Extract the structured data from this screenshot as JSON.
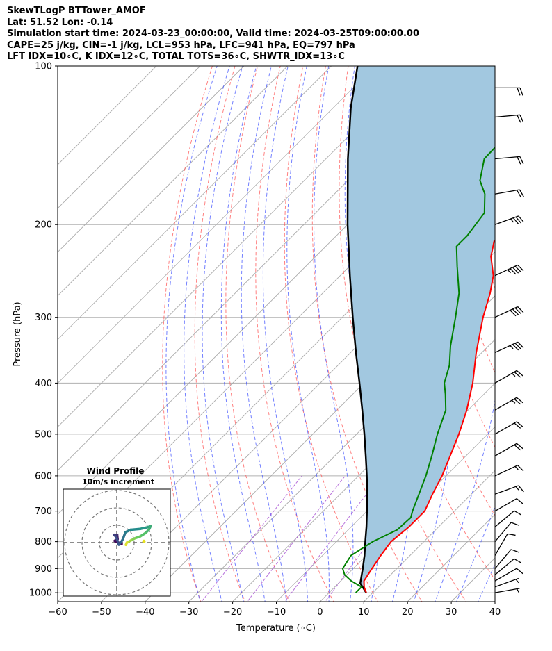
{
  "header": {
    "line1": "SkewTLogP BTTower_AMOF",
    "line2": "Lat: 51.52   Lon: -0.14",
    "line3": "Simulation start time: 2024-03-23_00:00:00, Valid time: 2024-03-25T09:00:00.00",
    "line4": "CAPE=25 j/kg, CIN=-1 j/kg, LCL=953 hPa, LFC=941 hPa, EQ=797 hPa",
    "line5": "LFT IDX=10∘C, K IDX=12∘C, TOTAL TOTS=36∘C, SHWTR_IDX=13∘C"
  },
  "chart_data": {
    "type": "line",
    "xlabel": "Temperature (∘C)",
    "ylabel": "Pressure (hPa)",
    "xlim": [
      -60,
      40
    ],
    "ylim": [
      1040,
      100
    ],
    "y_scale": "log",
    "skew": true,
    "x_ticks": [
      "−60",
      "−50",
      "−40",
      "−30",
      "−20",
      "−10",
      "0",
      "10",
      "20",
      "30",
      "40"
    ],
    "x_tick_values": [
      -60,
      -50,
      -40,
      -30,
      -20,
      -10,
      0,
      10,
      20,
      30,
      40
    ],
    "y_ticks": [
      "100",
      "200",
      "300",
      "400",
      "500",
      "600",
      "700",
      "800",
      "900",
      "1000"
    ],
    "y_tick_values": [
      100,
      200,
      300,
      400,
      500,
      600,
      700,
      800,
      900,
      1000
    ],
    "grid": true,
    "colors": {
      "temperature": "#ff0000",
      "dewpoint": "#008000",
      "parcel": "#000000",
      "cape_fill": "#a2c8e0",
      "dry_adiabats": "#ff5555",
      "moist_adiabats": "#4455ff",
      "mixing_ratio": "#9933cc",
      "isotherms": "#aaaaaa"
    },
    "temperature_profile": [
      {
        "p": 1000,
        "t": 8.5
      },
      {
        "p": 975,
        "t": 6.7
      },
      {
        "p": 950,
        "t": 5.3
      },
      {
        "p": 900,
        "t": 4.3
      },
      {
        "p": 850,
        "t": 3.3
      },
      {
        "p": 800,
        "t": 2.5
      },
      {
        "p": 750,
        "t": 3.2
      },
      {
        "p": 700,
        "t": 3.2
      },
      {
        "p": 650,
        "t": 1.1
      },
      {
        "p": 600,
        "t": -0.9
      },
      {
        "p": 550,
        "t": -3.6
      },
      {
        "p": 500,
        "t": -6.6
      },
      {
        "p": 450,
        "t": -10.3
      },
      {
        "p": 400,
        "t": -15.1
      },
      {
        "p": 350,
        "t": -21.3
      },
      {
        "p": 300,
        "t": -27.8
      },
      {
        "p": 270,
        "t": -31.7
      },
      {
        "p": 250,
        "t": -35.0
      },
      {
        "p": 230,
        "t": -39.9
      },
      {
        "p": 215,
        "t": -42.7
      },
      {
        "p": 200,
        "t": -41.1
      },
      {
        "p": 185,
        "t": -36.7
      },
      {
        "p": 170,
        "t": -37.9
      },
      {
        "p": 150,
        "t": -41.0
      },
      {
        "p": 140,
        "t": -43.6
      },
      {
        "p": 130,
        "t": -46.2
      },
      {
        "p": 120,
        "t": -50.4
      },
      {
        "p": 110,
        "t": -54.4
      },
      {
        "p": 104,
        "t": -56.9
      },
      {
        "p": 100,
        "t": -57.3
      }
    ],
    "dewpoint_profile": [
      {
        "p": 1000,
        "t": 6.1
      },
      {
        "p": 975,
        "t": 6.1
      },
      {
        "p": 950,
        "t": 2.4
      },
      {
        "p": 925,
        "t": -0.5
      },
      {
        "p": 900,
        "t": -2.4
      },
      {
        "p": 850,
        "t": -3.5
      },
      {
        "p": 800,
        "t": -1.7
      },
      {
        "p": 760,
        "t": 1.2
      },
      {
        "p": 720,
        "t": 1.5
      },
      {
        "p": 700,
        "t": 0.4
      },
      {
        "p": 650,
        "t": -2.0
      },
      {
        "p": 600,
        "t": -4.6
      },
      {
        "p": 550,
        "t": -7.8
      },
      {
        "p": 500,
        "t": -11.5
      },
      {
        "p": 450,
        "t": -15.1
      },
      {
        "p": 420,
        "t": -18.8
      },
      {
        "p": 400,
        "t": -21.6
      },
      {
        "p": 370,
        "t": -24.5
      },
      {
        "p": 340,
        "t": -28.7
      },
      {
        "p": 300,
        "t": -34.1
      },
      {
        "p": 270,
        "t": -38.8
      },
      {
        "p": 240,
        "t": -45.4
      },
      {
        "p": 220,
        "t": -50.1
      },
      {
        "p": 210,
        "t": -50.1
      },
      {
        "p": 190,
        "t": -51.4
      },
      {
        "p": 175,
        "t": -55.6
      },
      {
        "p": 165,
        "t": -59.8
      },
      {
        "p": 150,
        "t": -63.8
      },
      {
        "p": 140,
        "t": -64.0
      },
      {
        "p": 125,
        "t": -64.0
      },
      {
        "p": 110,
        "t": -66.0
      },
      {
        "p": 100,
        "t": -68.8
      }
    ],
    "parcel_profile": [
      {
        "p": 1000,
        "t": 8.5
      },
      {
        "p": 960,
        "t": 5.0
      },
      {
        "p": 900,
        "t": 2.2
      },
      {
        "p": 850,
        "t": -0.4
      },
      {
        "p": 800,
        "t": -3.4
      },
      {
        "p": 750,
        "t": -6.5
      },
      {
        "p": 700,
        "t": -10.0
      },
      {
        "p": 650,
        "t": -13.8
      },
      {
        "p": 600,
        "t": -18.1
      },
      {
        "p": 550,
        "t": -22.9
      },
      {
        "p": 500,
        "t": -28.2
      },
      {
        "p": 450,
        "t": -34.2
      },
      {
        "p": 400,
        "t": -41.0
      },
      {
        "p": 350,
        "t": -48.8
      },
      {
        "p": 300,
        "t": -57.6
      },
      {
        "p": 250,
        "t": -67.8
      },
      {
        "p": 200,
        "t": -80.0
      },
      {
        "p": 150,
        "t": -95.0
      },
      {
        "p": 120,
        "t": -106.0
      },
      {
        "p": 100,
        "t": -114.0
      }
    ],
    "wind_barbs": [
      {
        "p": 1000,
        "speed_kt": 5,
        "dir_deg": 260
      },
      {
        "p": 975,
        "speed_kt": 5,
        "dir_deg": 250
      },
      {
        "p": 950,
        "speed_kt": 10,
        "dir_deg": 240
      },
      {
        "p": 925,
        "speed_kt": 10,
        "dir_deg": 230
      },
      {
        "p": 900,
        "speed_kt": 10,
        "dir_deg": 220
      },
      {
        "p": 850,
        "speed_kt": 10,
        "dir_deg": 210
      },
      {
        "p": 800,
        "speed_kt": 10,
        "dir_deg": 220
      },
      {
        "p": 750,
        "speed_kt": 10,
        "dir_deg": 230
      },
      {
        "p": 700,
        "speed_kt": 10,
        "dir_deg": 240
      },
      {
        "p": 650,
        "speed_kt": 15,
        "dir_deg": 250
      },
      {
        "p": 600,
        "speed_kt": 15,
        "dir_deg": 245
      },
      {
        "p": 550,
        "speed_kt": 20,
        "dir_deg": 240
      },
      {
        "p": 500,
        "speed_kt": 20,
        "dir_deg": 240
      },
      {
        "p": 450,
        "speed_kt": 25,
        "dir_deg": 240
      },
      {
        "p": 400,
        "speed_kt": 25,
        "dir_deg": 240
      },
      {
        "p": 350,
        "speed_kt": 35,
        "dir_deg": 245
      },
      {
        "p": 300,
        "speed_kt": 40,
        "dir_deg": 245
      },
      {
        "p": 250,
        "speed_kt": 45,
        "dir_deg": 245
      },
      {
        "p": 200,
        "speed_kt": 35,
        "dir_deg": 250
      },
      {
        "p": 175,
        "speed_kt": 20,
        "dir_deg": 260
      },
      {
        "p": 150,
        "speed_kt": 20,
        "dir_deg": 265
      },
      {
        "p": 125,
        "speed_kt": 20,
        "dir_deg": 265
      },
      {
        "p": 110,
        "speed_kt": 20,
        "dir_deg": 270
      }
    ],
    "hodograph": {
      "title": "Wind Profile",
      "subtitle": "10m/s increment",
      "ring_step_ms": 10,
      "u": [
        5.2,
        5.8,
        6.8,
        8.2,
        10.5,
        13.5,
        16.5,
        18.5,
        19.5,
        17.5,
        13.5,
        8.0,
        5.0,
        3.5,
        2.6,
        1.2,
        -0.3,
        -1.5,
        0.2,
        0.5,
        -1.2,
        2.8
      ],
      "v": [
        -1.3,
        0.0,
        0.5,
        1.3,
        2.5,
        3.6,
        5.5,
        7.5,
        9.5,
        8.8,
        7.9,
        7.4,
        6.0,
        2.0,
        0.5,
        -1.2,
        3.2,
        4.5,
        4.5,
        2.0,
        1.0,
        -0.8
      ]
    }
  }
}
